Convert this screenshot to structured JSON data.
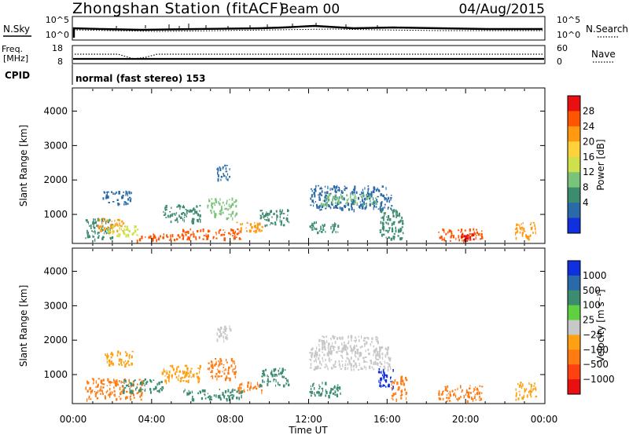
{
  "header": {
    "title": "Zhongshan Station (fitACF)",
    "beam": "Beam 00",
    "date": "04/Aug/2015"
  },
  "status_panels": {
    "nsky_label": "N.Sky",
    "nsearch_label": "N.Search",
    "noise_ticks": [
      "10^5",
      "10^0"
    ],
    "freq_label": "Freq.",
    "freq_unit": "[MHz]",
    "freq_ticks": [
      "18",
      "8"
    ],
    "nave_label": "Nave",
    "nave_ticks": [
      "60",
      "0"
    ],
    "cpid_label": "CPID",
    "cpid_value": "normal (fast stereo) 153"
  },
  "chart_data": [
    {
      "type": "heatmap",
      "name": "power",
      "ylabel": "Slant Range [km]",
      "yticks": [
        1000,
        2000,
        3000,
        4000
      ],
      "ylim": [
        180,
        4650
      ],
      "xlim": [
        0,
        24
      ],
      "colorbar": {
        "label": "Power [dB]",
        "ticks": [
          "28",
          "24",
          "20",
          "16",
          "12",
          "8",
          "4"
        ],
        "colors": [
          "#e81010",
          "#ff5500",
          "#ff9a10",
          "#ffd23a",
          "#cfe04a",
          "#7ac47a",
          "#3c8c70",
          "#2a6aa8",
          "#1030e0"
        ]
      },
      "regions": [
        {
          "t0": 0.6,
          "t1": 2.0,
          "r0": 300,
          "r1": 900,
          "color": "#3c8c70"
        },
        {
          "t0": 1.2,
          "t1": 2.6,
          "r0": 500,
          "r1": 900,
          "color": "#ff9a10"
        },
        {
          "t0": 1.7,
          "t1": 3.3,
          "r0": 400,
          "r1": 700,
          "color": "#cfe04a"
        },
        {
          "t0": 3.2,
          "t1": 5.4,
          "r0": 250,
          "r1": 450,
          "color": "#ff5500"
        },
        {
          "t0": 1.5,
          "t1": 3.0,
          "r0": 1300,
          "r1": 1700,
          "color": "#2a6aa8"
        },
        {
          "t0": 4.5,
          "t1": 6.5,
          "r0": 800,
          "r1": 1300,
          "color": "#3c8c70"
        },
        {
          "t0": 5.5,
          "t1": 8.6,
          "r0": 300,
          "r1": 600,
          "color": "#ff5500"
        },
        {
          "t0": 6.8,
          "t1": 8.3,
          "r0": 900,
          "r1": 1500,
          "color": "#7ac47a"
        },
        {
          "t0": 7.3,
          "t1": 8.0,
          "r0": 2000,
          "r1": 2450,
          "color": "#2a6aa8"
        },
        {
          "t0": 8.3,
          "t1": 9.6,
          "r0": 500,
          "r1": 800,
          "color": "#ff9a10"
        },
        {
          "t0": 9.5,
          "t1": 11.0,
          "r0": 700,
          "r1": 1200,
          "color": "#3c8c70"
        },
        {
          "t0": 12.0,
          "t1": 16.2,
          "r0": 1150,
          "r1": 1850,
          "color": "#2a6aa8"
        },
        {
          "t0": 12.6,
          "t1": 15.4,
          "r0": 1300,
          "r1": 1600,
          "color": "#7ac47a"
        },
        {
          "t0": 12.0,
          "t1": 13.6,
          "r0": 500,
          "r1": 800,
          "color": "#3c8c70"
        },
        {
          "t0": 15.6,
          "t1": 16.8,
          "r0": 300,
          "r1": 1200,
          "color": "#3c8c70"
        },
        {
          "t0": 18.6,
          "t1": 20.8,
          "r0": 250,
          "r1": 600,
          "color": "#ff5500"
        },
        {
          "t0": 19.6,
          "t1": 20.4,
          "r0": 250,
          "r1": 450,
          "color": "#e81010"
        },
        {
          "t0": 22.5,
          "t1": 23.6,
          "r0": 300,
          "r1": 800,
          "color": "#ff9a10"
        }
      ]
    },
    {
      "type": "heatmap",
      "name": "velocity",
      "ylabel": "Slant Range [km]",
      "xlabel": "Time UT",
      "xticks": [
        "00:00",
        "04:00",
        "08:00",
        "12:00",
        "16:00",
        "20:00",
        "00:00"
      ],
      "yticks": [
        1000,
        2000,
        3000,
        4000
      ],
      "ylim": [
        180,
        4650
      ],
      "xlim": [
        0,
        24
      ],
      "colorbar": {
        "label": "Velocity [m s⁻¹]",
        "ticks": [
          "1000",
          "500",
          "100",
          "25",
          "−25",
          "−100",
          "−500",
          "−1000"
        ],
        "colors": [
          "#1030e0",
          "#2a6aa8",
          "#3c8c70",
          "#5fd040",
          "#c8c8c8",
          "#ffa010",
          "#ff7a10",
          "#ff4010",
          "#e81010"
        ]
      },
      "regions": [
        {
          "t0": 0.6,
          "t1": 3.5,
          "r0": 300,
          "r1": 900,
          "color": "#ff7a10"
        },
        {
          "t0": 1.5,
          "t1": 3.0,
          "r0": 1300,
          "r1": 1700,
          "color": "#ffa010"
        },
        {
          "t0": 2.5,
          "t1": 4.6,
          "r0": 500,
          "r1": 900,
          "color": "#3c8c70"
        },
        {
          "t0": 4.5,
          "t1": 6.5,
          "r0": 800,
          "r1": 1300,
          "color": "#ffa010"
        },
        {
          "t0": 5.5,
          "t1": 8.6,
          "r0": 300,
          "r1": 600,
          "color": "#3c8c70"
        },
        {
          "t0": 6.8,
          "t1": 8.3,
          "r0": 900,
          "r1": 1500,
          "color": "#ff7a10"
        },
        {
          "t0": 7.3,
          "t1": 8.0,
          "r0": 2000,
          "r1": 2450,
          "color": "#c8c8c8"
        },
        {
          "t0": 8.3,
          "t1": 9.6,
          "r0": 500,
          "r1": 800,
          "color": "#ff7a10"
        },
        {
          "t0": 9.5,
          "t1": 11.0,
          "r0": 700,
          "r1": 1200,
          "color": "#3c8c70"
        },
        {
          "t0": 12.0,
          "t1": 16.2,
          "r0": 1150,
          "r1": 1850,
          "color": "#c8c8c8"
        },
        {
          "t0": 12.5,
          "t1": 15.6,
          "r0": 1800,
          "r1": 2150,
          "color": "#c8c8c8"
        },
        {
          "t0": 12.0,
          "t1": 13.6,
          "r0": 400,
          "r1": 800,
          "color": "#3c8c70"
        },
        {
          "t0": 15.5,
          "t1": 16.3,
          "r0": 600,
          "r1": 1200,
          "color": "#1030e0"
        },
        {
          "t0": 16.2,
          "t1": 17.0,
          "r0": 300,
          "r1": 1000,
          "color": "#ff7a10"
        },
        {
          "t0": 18.6,
          "t1": 20.8,
          "r0": 250,
          "r1": 700,
          "color": "#ff7a10"
        },
        {
          "t0": 22.5,
          "t1": 23.6,
          "r0": 300,
          "r1": 800,
          "color": "#ffa010"
        }
      ]
    }
  ]
}
